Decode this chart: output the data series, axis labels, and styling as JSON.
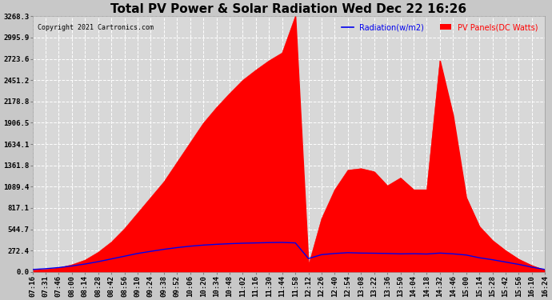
{
  "title": "Total PV Power & Solar Radiation Wed Dec 22 16:26",
  "copyright": "Copyright 2021 Cartronics.com",
  "legend_radiation": "Radiation(w/m2)",
  "legend_pv": "PV Panels(DC Watts)",
  "yticks": [
    0.0,
    272.4,
    544.7,
    817.1,
    1089.4,
    1361.8,
    1634.1,
    1906.5,
    2178.8,
    2451.2,
    2723.6,
    2995.9,
    3268.3
  ],
  "ymax": 3268.3,
  "bg_color": "#c8c8c8",
  "plot_bg_color": "#d8d8d8",
  "grid_color": "white",
  "fill_color": "#ff0000",
  "line_color": "#0000ee",
  "title_fontsize": 11,
  "tick_fontsize": 6.5,
  "xtick_labels": [
    "07:16",
    "07:31",
    "07:46",
    "08:00",
    "08:14",
    "08:28",
    "08:42",
    "08:56",
    "09:10",
    "09:24",
    "09:38",
    "09:52",
    "10:06",
    "10:20",
    "10:34",
    "10:48",
    "11:02",
    "11:16",
    "11:30",
    "11:44",
    "11:58",
    "12:12",
    "12:26",
    "12:40",
    "12:54",
    "13:08",
    "13:22",
    "13:36",
    "13:50",
    "14:04",
    "14:18",
    "14:32",
    "14:46",
    "15:00",
    "15:14",
    "15:28",
    "15:42",
    "15:56",
    "16:10",
    "16:24"
  ],
  "pv_values": [
    20,
    30,
    50,
    90,
    150,
    250,
    380,
    550,
    750,
    950,
    1150,
    1400,
    1650,
    1900,
    2100,
    2280,
    2450,
    2580,
    2700,
    2800,
    3268,
    80,
    680,
    1050,
    1300,
    1320,
    1280,
    1100,
    1200,
    1050,
    1050,
    2700,
    2000,
    950,
    580,
    400,
    270,
    160,
    80,
    20
  ],
  "radiation_values": [
    30,
    40,
    55,
    75,
    100,
    130,
    165,
    200,
    235,
    262,
    288,
    310,
    328,
    342,
    352,
    360,
    366,
    370,
    374,
    376,
    370,
    170,
    220,
    235,
    245,
    240,
    238,
    235,
    230,
    232,
    228,
    240,
    230,
    215,
    180,
    155,
    125,
    95,
    60,
    30
  ]
}
